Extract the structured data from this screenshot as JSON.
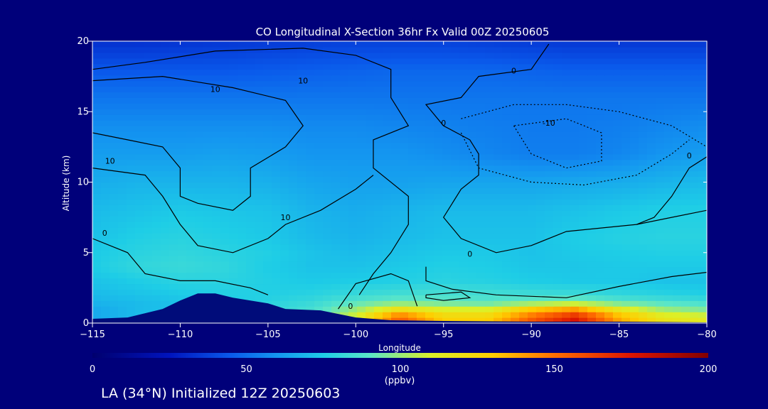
{
  "chart_data": {
    "type": "heatmap",
    "title": "CO Longitudinal X-Section 36hr  Fx Valid 00Z 20250605",
    "xlabel": "Longitude",
    "ylabel": "Altitude (km)",
    "xlim": [
      -115,
      -80
    ],
    "ylim": [
      0,
      20
    ],
    "x_ticks": [
      -115,
      -110,
      -105,
      -100,
      -95,
      -90,
      -85,
      -80
    ],
    "y_ticks": [
      0,
      5,
      10,
      15,
      20
    ],
    "x_grid": [
      -115,
      -112.5,
      -110,
      -107.5,
      -105,
      -102.5,
      -100,
      -97.5,
      -95,
      -92.5,
      -90,
      -87.5,
      -85,
      -82.5,
      -80
    ],
    "y_grid": [
      0,
      0.5,
      1,
      1.5,
      2,
      3,
      4,
      5,
      6,
      8,
      10,
      12,
      14,
      16,
      18,
      20
    ],
    "z": [
      [
        65,
        70,
        75,
        80,
        85,
        90,
        115,
        160,
        130,
        130,
        160,
        180,
        140,
        120,
        115
      ],
      [
        65,
        70,
        75,
        80,
        80,
        88,
        110,
        150,
        125,
        125,
        150,
        170,
        135,
        115,
        110
      ],
      [
        65,
        70,
        72,
        75,
        80,
        85,
        100,
        120,
        110,
        110,
        130,
        140,
        115,
        100,
        95
      ],
      [
        68,
        70,
        72,
        75,
        78,
        82,
        90,
        95,
        92,
        90,
        95,
        100,
        92,
        88,
        85
      ],
      [
        70,
        72,
        74,
        76,
        76,
        78,
        82,
        85,
        86,
        85,
        84,
        83,
        80,
        78,
        76
      ],
      [
        72,
        75,
        78,
        78,
        76,
        74,
        75,
        76,
        78,
        77,
        75,
        74,
        74,
        72,
        72
      ],
      [
        75,
        80,
        82,
        80,
        75,
        72,
        72,
        74,
        76,
        75,
        73,
        73,
        74,
        74,
        74
      ],
      [
        74,
        78,
        80,
        78,
        76,
        72,
        70,
        72,
        74,
        74,
        72,
        74,
        75,
        76,
        76
      ],
      [
        72,
        76,
        78,
        76,
        74,
        70,
        68,
        70,
        72,
        72,
        72,
        75,
        77,
        78,
        78
      ],
      [
        70,
        72,
        74,
        73,
        72,
        68,
        66,
        68,
        70,
        70,
        70,
        72,
        74,
        76,
        76
      ],
      [
        66,
        68,
        68,
        68,
        67,
        64,
        63,
        63,
        64,
        64,
        64,
        65,
        66,
        68,
        70
      ],
      [
        62,
        62,
        62,
        63,
        62,
        60,
        60,
        60,
        58,
        56,
        54,
        54,
        56,
        60,
        62
      ],
      [
        58,
        58,
        58,
        58,
        58,
        57,
        57,
        56,
        55,
        54,
        53,
        53,
        54,
        56,
        58
      ],
      [
        52,
        52,
        52,
        52,
        52,
        52,
        52,
        52,
        52,
        52,
        52,
        52,
        52,
        52,
        52
      ],
      [
        44,
        44,
        44,
        44,
        45,
        46,
        47,
        48,
        48,
        48,
        47,
        46,
        46,
        46,
        46
      ],
      [
        33,
        33,
        34,
        35,
        36,
        37,
        38,
        38,
        38,
        37,
        36,
        35,
        35,
        35,
        35
      ]
    ],
    "terrain": [
      [
        -115,
        0.3
      ],
      [
        -113,
        0.4
      ],
      [
        -111,
        1.0
      ],
      [
        -110,
        1.6
      ],
      [
        -109,
        2.1
      ],
      [
        -108,
        2.1
      ],
      [
        -107,
        1.8
      ],
      [
        -106,
        1.6
      ],
      [
        -105,
        1.4
      ],
      [
        -104,
        1.0
      ],
      [
        -102,
        0.9
      ],
      [
        -100,
        0.4
      ],
      [
        -98,
        0.2
      ],
      [
        -95,
        0.15
      ],
      [
        -90,
        0.1
      ],
      [
        -85,
        0.1
      ],
      [
        -80,
        0.05
      ]
    ],
    "contour_labels": [
      {
        "text": "10",
        "x": -103.0,
        "y": 17.0
      },
      {
        "text": "10",
        "x": -108.0,
        "y": 16.4
      },
      {
        "text": "10",
        "x": -114.0,
        "y": 11.3
      },
      {
        "text": "10",
        "x": -104.0,
        "y": 7.3
      },
      {
        "text": "0",
        "x": -91.0,
        "y": 17.7
      },
      {
        "text": "0",
        "x": -95.0,
        "y": 14.0
      },
      {
        "text": "0",
        "x": -81.0,
        "y": 11.7
      },
      {
        "text": "0",
        "x": -114.3,
        "y": 6.2
      },
      {
        "text": "0",
        "x": -93.5,
        "y": 4.7
      },
      {
        "text": "0",
        "x": -100.3,
        "y": 1.0
      },
      {
        "text": "-10",
        "x": -89.0,
        "y": 14.0
      }
    ],
    "colorbar": {
      "ticks": [
        0,
        50,
        100,
        150,
        200
      ],
      "label": "(ppbv)",
      "range": [
        0,
        200
      ]
    }
  },
  "footer_text": "LA (34°N) Initialized 12Z 20250603",
  "colors": {
    "background": "#00007a",
    "terrain": "#000c7a",
    "contour": "#000000"
  }
}
